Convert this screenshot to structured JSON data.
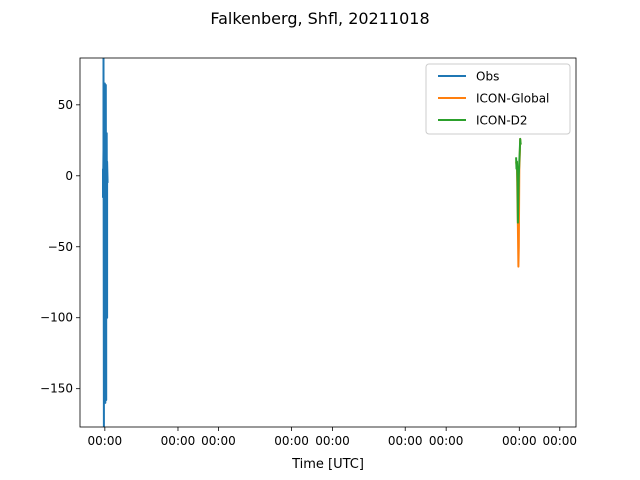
{
  "chart_data": {
    "type": "line",
    "title": "Falkenberg, Shfl, 20211018",
    "xlabel": "Time [UTC]",
    "ylabel": "",
    "ylim": [
      -177,
      83
    ],
    "yticks": [
      50,
      0,
      -50,
      -100,
      -150
    ],
    "xlim": [
      0,
      1
    ],
    "x_axis_note": "time axis; tick labels all read 00:00",
    "xticks": [
      {
        "pos": 0.054,
        "label": "00:00"
      },
      {
        "pos": 0.213,
        "label": "00:00"
      },
      {
        "pos": 0.301,
        "label": "00:00"
      },
      {
        "pos": 0.46,
        "label": "00:00"
      },
      {
        "pos": 0.549,
        "label": "00:00"
      },
      {
        "pos": 0.707,
        "label": "00:00"
      },
      {
        "pos": 0.796,
        "label": "00:00"
      },
      {
        "pos": 0.955,
        "label": "00:00"
      },
      {
        "pos": 1.043,
        "label": "00:00"
      }
    ],
    "legend_position": "upper right",
    "grid": false,
    "series": [
      {
        "name": "Obs",
        "color": "#1f77b4",
        "x": [
          0.05,
          0.05,
          0.051,
          0.051,
          0.052,
          0.052,
          0.053,
          0.053,
          0.054,
          0.054,
          0.055,
          0.055,
          0.056,
          0.056,
          0.057,
          0.057,
          0.058,
          0.058,
          0.059,
          0.059,
          0.06
        ],
        "y": [
          5,
          -15,
          18,
          83,
          -177,
          10,
          -80,
          60,
          -130,
          65,
          -160,
          20,
          -70,
          64,
          -158,
          0,
          -40,
          30,
          -100,
          10,
          -5
        ]
      },
      {
        "name": "ICON-Global",
        "color": "#ff7f0e",
        "x": [
          0.948,
          0.95,
          0.951,
          0.952,
          0.953,
          0.954,
          0.955,
          0.956,
          0.957,
          0.958
        ],
        "y": [
          10,
          5,
          -20,
          -36,
          -64,
          -50,
          5,
          15,
          26,
          22
        ]
      },
      {
        "name": "ICON-D2",
        "color": "#2ca02c",
        "x": [
          0.948,
          0.949,
          0.95,
          0.951,
          0.952,
          0.953,
          0.954,
          0.955,
          0.956,
          0.957,
          0.958
        ],
        "y": [
          13,
          5,
          10,
          -5,
          -33,
          -15,
          0,
          10,
          18,
          26,
          22
        ]
      }
    ]
  }
}
